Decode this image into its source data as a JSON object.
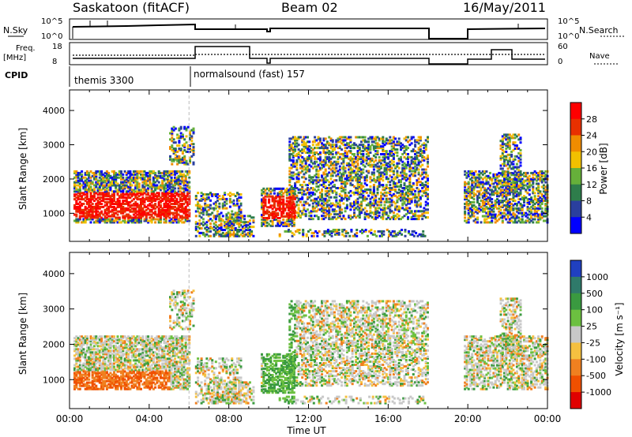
{
  "header": {
    "title_left": "Saskatoon (fitACF)",
    "title_center": "Beam 02",
    "title_right": "16/May/2011"
  },
  "top_panels": {
    "nsky_label": "N.Sky",
    "nsky_ticks": [
      "10^5",
      "10^0"
    ],
    "nsearch_label": "N.Search",
    "freq_label": [
      "Freq.",
      "[MHz]"
    ],
    "freq_ticks": [
      "18",
      "8"
    ],
    "nave_ticks": [
      "60",
      "0"
    ],
    "nave_label": "Nave",
    "cpid_label": "CPID",
    "cpid_segments": [
      {
        "name": "themis 3300",
        "start_hour": 0,
        "end_hour": 6
      },
      {
        "name": "normalsound (fast) 157",
        "start_hour": 6,
        "end_hour": 24
      }
    ]
  },
  "chart_data": [
    {
      "type": "heatmap",
      "title": "",
      "xlabel": "Time UT",
      "ylabel": "Slant Range [km]",
      "xlim_hours": [
        0,
        24
      ],
      "x_tick_labels": [
        "00:00",
        "04:00",
        "08:00",
        "12:00",
        "16:00",
        "20:00",
        "00:00"
      ],
      "ylim": [
        180,
        4600
      ],
      "y_ticks": [
        1000,
        2000,
        3000,
        4000
      ],
      "colorbar": {
        "label": "Power [dB]",
        "ticks": [
          "4",
          "8",
          "12",
          "16",
          "20",
          "24",
          "28"
        ],
        "colors": [
          "#0000ff",
          "#2a3f9e",
          "#2e7d4b",
          "#66b03a",
          "#f2c000",
          "#f08c00",
          "#e83000",
          "#ff0000"
        ]
      },
      "regions": [
        {
          "name": "early-strong-echoes",
          "t": [
            0.0,
            6.0
          ],
          "r": [
            800,
            2200
          ],
          "level": "high"
        },
        {
          "name": "late-arc",
          "t": [
            9.5,
            18.0
          ],
          "r": [
            1200,
            3200
          ],
          "level": "medium"
        }
      ],
      "data_gaps_hours": [
        [
          18.0,
          19.8
        ]
      ]
    },
    {
      "type": "heatmap",
      "title": "",
      "xlabel": "Time UT",
      "ylabel": "Slant Range [km]",
      "xlim_hours": [
        0,
        24
      ],
      "x_tick_labels": [
        "00:00",
        "04:00",
        "08:00",
        "12:00",
        "16:00",
        "20:00",
        "00:00"
      ],
      "ylim": [
        180,
        4600
      ],
      "y_ticks": [
        1000,
        2000,
        3000,
        4000
      ],
      "colorbar": {
        "label": "Velocity [m s⁻¹]",
        "ticks": [
          "1000",
          "500",
          "100",
          "25",
          "-25",
          "-100",
          "-500",
          "-1000"
        ],
        "colors": [
          "#2040c0",
          "#2f7a6a",
          "#3a9a40",
          "#6cc040",
          "#c8c8c8",
          "#f5c040",
          "#f08020",
          "#f05000",
          "#e00000"
        ]
      },
      "data_gaps_hours": [
        [
          18.0,
          19.8
        ]
      ]
    }
  ],
  "bottom": {
    "xlabel": "Time UT"
  }
}
